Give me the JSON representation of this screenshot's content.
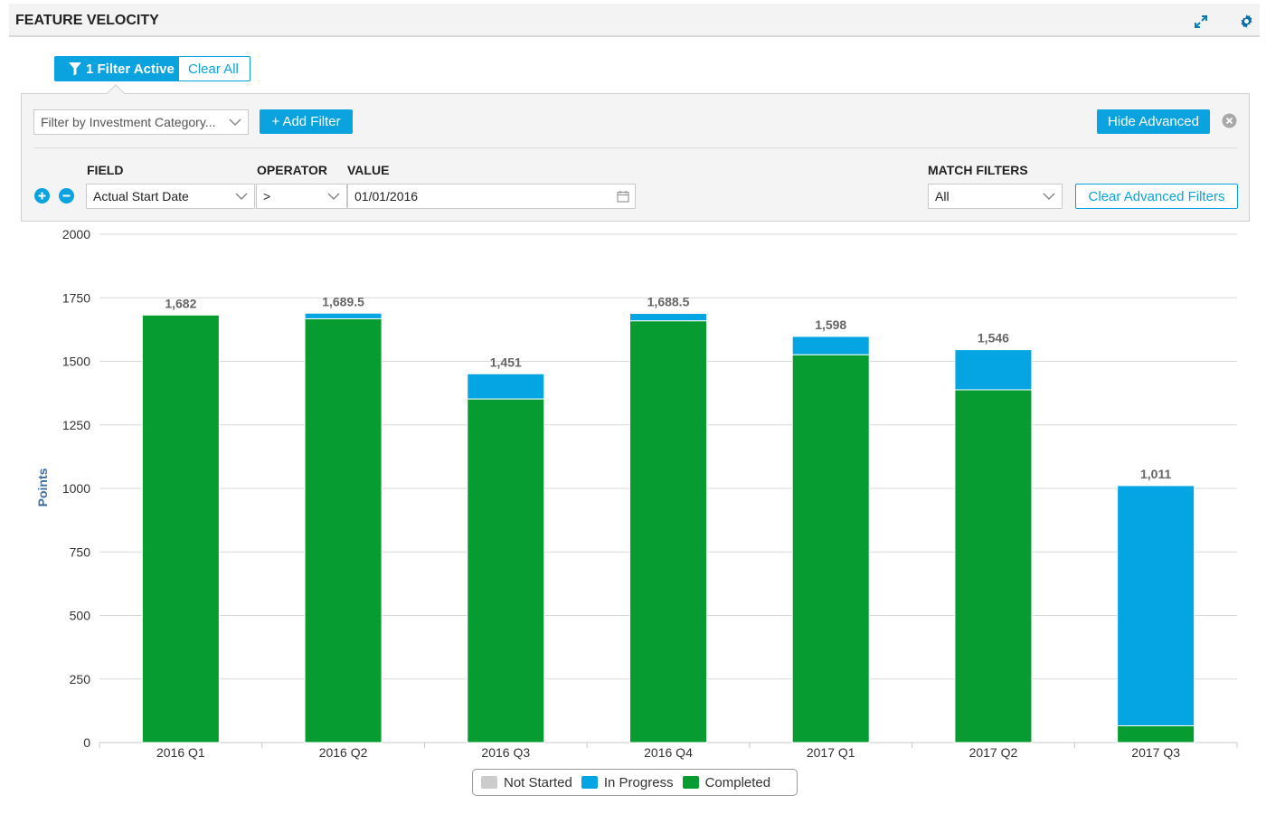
{
  "header": {
    "title": "FEATURE VELOCITY"
  },
  "filter_bar": {
    "active_label": "1 Filter Active",
    "clear_all": "Clear All"
  },
  "advanced": {
    "category_placeholder": "Filter by Investment Category...",
    "add_filter": "+ Add Filter",
    "hide_advanced": "Hide Advanced",
    "field_label": "FIELD",
    "operator_label": "OPERATOR",
    "value_label": "VALUE",
    "match_label": "MATCH FILTERS",
    "field_value": "Actual Start Date",
    "operator_value": ">",
    "date_value": "01/01/2016",
    "match_value": "All",
    "clear_advanced": "Clear Advanced Filters"
  },
  "colors": {
    "accent": "#0aa3df",
    "completed": "#069c32",
    "in_progress": "#04a5e2",
    "not_started": "#cccccc"
  },
  "chart_data": {
    "type": "bar",
    "stacked": true,
    "categories": [
      "2016 Q1",
      "2016 Q2",
      "2016 Q3",
      "2016 Q4",
      "2017 Q1",
      "2017 Q2",
      "2017 Q3"
    ],
    "series": [
      {
        "name": "Not Started",
        "values": [
          0,
          0,
          0,
          0,
          0,
          0,
          0
        ]
      },
      {
        "name": "In Progress",
        "values": [
          0,
          22,
          99,
          29,
          72,
          158,
          945
        ]
      },
      {
        "name": "Completed",
        "values": [
          1682,
          1667.5,
          1352,
          1659.5,
          1526,
          1388,
          66
        ]
      }
    ],
    "totals": [
      1682,
      1689.5,
      1451,
      1688.5,
      1598,
      1546,
      1011
    ],
    "total_labels": [
      "1,682",
      "1,689.5",
      "1,451",
      "1,688.5",
      "1,598",
      "1,546",
      "1,011"
    ],
    "ylabel": "Points",
    "ylim": [
      0,
      2000
    ],
    "yticks": [
      0,
      250,
      500,
      750,
      1000,
      1250,
      1500,
      1750,
      2000
    ],
    "grid": true,
    "legend": "bottom"
  }
}
